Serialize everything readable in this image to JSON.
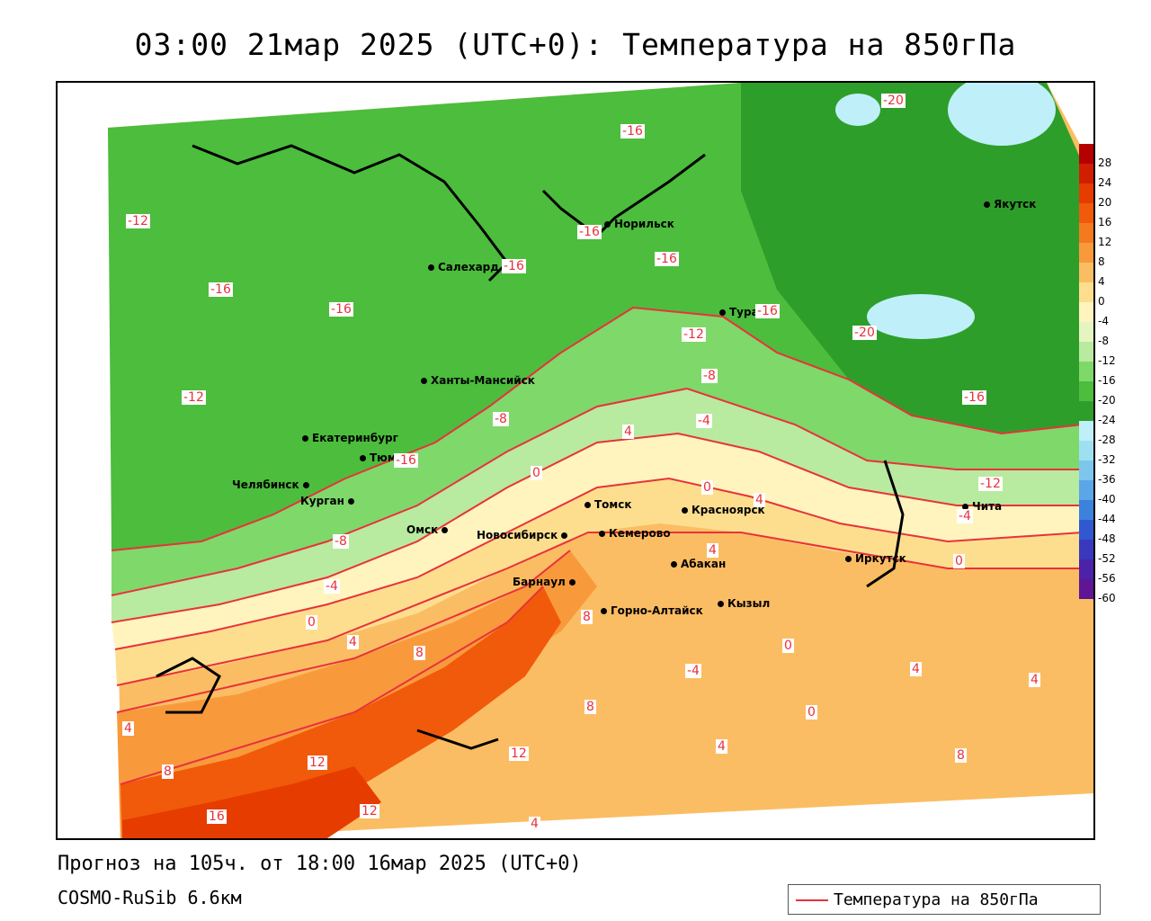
{
  "title": "03:00 21мар 2025 (UTC+0): Температура на 850гПа",
  "footer": {
    "forecast": "Прогноз на 105ч. от 18:00 16мар 2025 (UTC+0)",
    "model": "COSMO-RuSib 6.6км"
  },
  "legend": {
    "label": "Температура на 850гПа",
    "line_color": "#e8323c"
  },
  "colorbar": {
    "ticks": [
      "28",
      "24",
      "20",
      "16",
      "12",
      "8",
      "4",
      "0",
      "-4",
      "-8",
      "-12",
      "-16",
      "-20",
      "-24",
      "-28",
      "-32",
      "-36",
      "-40",
      "-44",
      "-48",
      "-52",
      "-56",
      "-60"
    ],
    "colors": [
      "#b40000",
      "#d21e00",
      "#e63c00",
      "#f05a0a",
      "#f47a1e",
      "#f89a3c",
      "#fbbd63",
      "#fdde8e",
      "#fff4bd",
      "#e5f5c1",
      "#b8eaa0",
      "#7fd86a",
      "#4cbd3c",
      "#2e9e2a",
      "#bfeff8",
      "#9fdff2",
      "#7cc6ee",
      "#5aa6e6",
      "#3c82dc",
      "#3059cf",
      "#3a38bd",
      "#4b22a8",
      "#601496"
    ]
  },
  "cities": [
    {
      "name": "Салехард"
    },
    {
      "name": "Норильск"
    },
    {
      "name": "Якутск"
    },
    {
      "name": "Тура"
    },
    {
      "name": "Ханты-Мансийск"
    },
    {
      "name": "Екатеринбург"
    },
    {
      "name": "Тюмень"
    },
    {
      "name": "Челябинск"
    },
    {
      "name": "Курган"
    },
    {
      "name": "Омск"
    },
    {
      "name": "Новосибирск"
    },
    {
      "name": "Томск"
    },
    {
      "name": "Кемерово"
    },
    {
      "name": "Красноярск"
    },
    {
      "name": "Барнаул"
    },
    {
      "name": "Абакан"
    },
    {
      "name": "Горно-Алтайск"
    },
    {
      "name": "Кызыл"
    },
    {
      "name": "Иркутск"
    },
    {
      "name": "Чита"
    }
  ],
  "contour_labels": [
    "-20",
    "-20",
    "-16",
    "-16",
    "-16",
    "-16",
    "-16",
    "-16",
    "-16",
    "-16",
    "-16",
    "-12",
    "-12",
    "-12",
    "-12",
    "-8",
    "-8",
    "-8",
    "-4",
    "-4",
    "-4",
    "-4",
    "0",
    "0",
    "0",
    "0",
    "0",
    "0",
    "4",
    "4",
    "4",
    "4",
    "4",
    "4",
    "4",
    "4",
    "4",
    "8",
    "8",
    "8",
    "8",
    "8",
    "12",
    "12",
    "12",
    "16"
  ]
}
